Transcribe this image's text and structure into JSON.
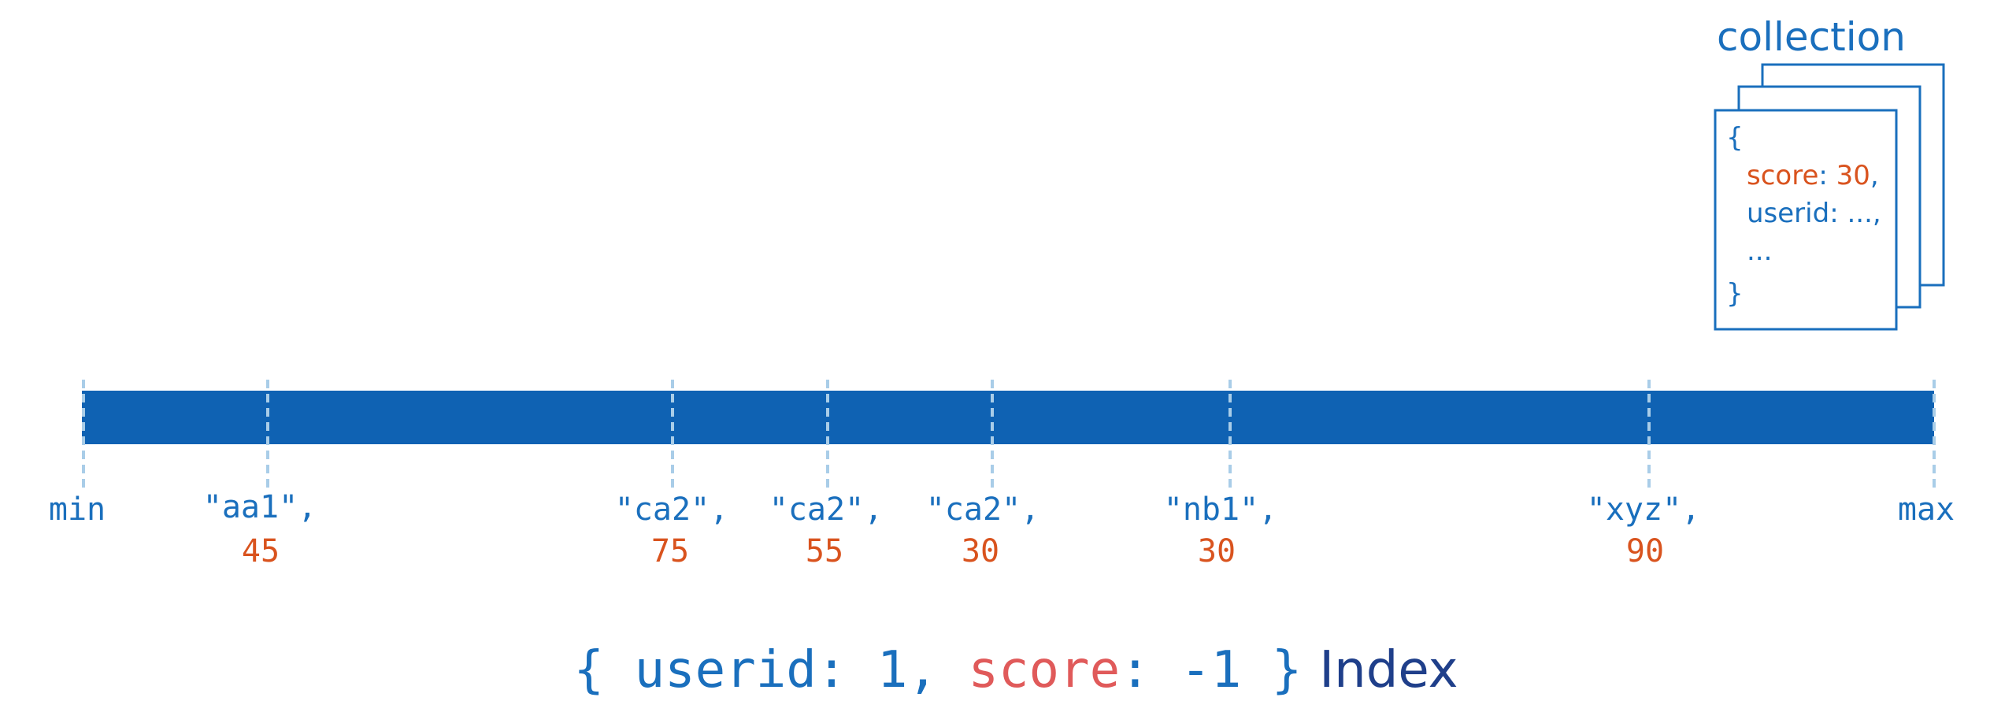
{
  "collection": {
    "title": "collection",
    "doc_open": "{",
    "field1_key": "score",
    "field1_sep": ": ",
    "field1_value": "30",
    "field1_comma": ",",
    "field2": "userid: ...,",
    "ellipsis": "...",
    "doc_close": "}"
  },
  "index_bar": {
    "min_label": "min",
    "max_label": "max",
    "entries": [
      {
        "key": "\"aa1\",",
        "value": "45"
      },
      {
        "key": "\"ca2\",",
        "value": "75"
      },
      {
        "key": "\"ca2\",",
        "value": "55"
      },
      {
        "key": "\"ca2\",",
        "value": "30"
      },
      {
        "key": "\"nb1\",",
        "value": "30"
      },
      {
        "key": "\"xyz\",",
        "value": "90"
      }
    ]
  },
  "caption": {
    "open": "{ ",
    "field1": "userid",
    "sep1": ": 1, ",
    "field2": "score",
    "sep2": ": -1 }",
    "label": "Index"
  },
  "colors": {
    "blue": "#1a6fbd",
    "bar": "#0f62b3",
    "divider": "#a9cde8",
    "orange": "#d9531e",
    "red": "#e05a5a",
    "navy": "#1f3f8a"
  }
}
